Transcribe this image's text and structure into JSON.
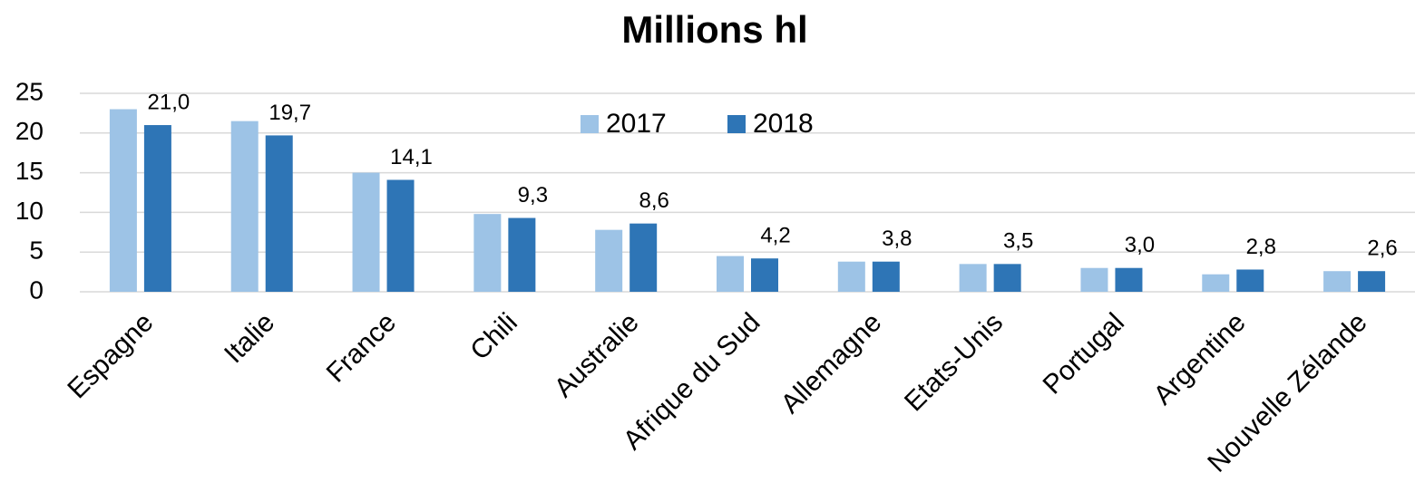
{
  "chart_data": {
    "type": "bar",
    "title": "Millions hl",
    "categories": [
      "Espagne",
      "Italie",
      "France",
      "Chili",
      "Australie",
      "Afrique du Sud",
      "Allemagne",
      "Etats-Unis",
      "Portugal",
      "Argentine",
      "Nouvelle Zélande"
    ],
    "series": [
      {
        "name": "2017",
        "color": "#9dc3e6",
        "values": [
          23.0,
          21.5,
          15.0,
          9.8,
          7.8,
          4.5,
          3.8,
          3.5,
          3.0,
          2.2,
          2.6
        ]
      },
      {
        "name": "2018",
        "color": "#2e75b6",
        "values": [
          21.0,
          19.7,
          14.1,
          9.3,
          8.6,
          4.2,
          3.8,
          3.5,
          3.0,
          2.8,
          2.6
        ],
        "value_labels": [
          "21,0",
          "19,7",
          "14,1",
          "9,3",
          "8,6",
          "4,2",
          "3,8",
          "3,5",
          "3,0",
          "2,8",
          "2,6"
        ]
      }
    ],
    "ylim": [
      0,
      25
    ],
    "yticks": [
      0,
      5,
      10,
      15,
      20,
      25
    ],
    "grid": true,
    "legend": "upper center"
  }
}
